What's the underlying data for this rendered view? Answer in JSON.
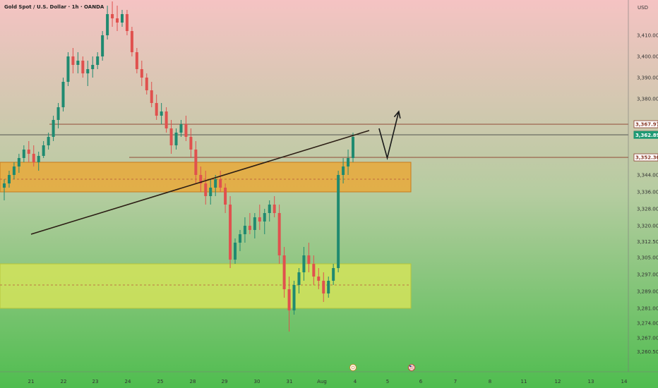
{
  "chart_data": {
    "type": "candlestick",
    "title": "Gold Spot / U.S. Dollar · 1h · OANDA",
    "currency": "USD",
    "colors": {
      "bg_top": "#f5c3c3",
      "bg_mid": "#b5cca0",
      "bg_bottom": "#4fbd4f",
      "up": "#1f8a70",
      "down": "#e0514e",
      "resistance_zone": "#e9a93a",
      "support_zone": "#d4e35a",
      "level_line": "#8a3b2a",
      "trendline": "#2b1d14"
    },
    "y_range": [
      3255,
      3425
    ],
    "y_ticks": [
      {
        "v": 3410,
        "label": "3,410.000"
      },
      {
        "v": 3400,
        "label": "3,400.000"
      },
      {
        "v": 3390,
        "label": "3,390.000"
      },
      {
        "v": 3380,
        "label": "3,380.000"
      },
      {
        "v": 3344,
        "label": "3,344.000"
      },
      {
        "v": 3336,
        "label": "3,336.000"
      },
      {
        "v": 3328,
        "label": "3,328.000"
      },
      {
        "v": 3320,
        "label": "3,320.000"
      },
      {
        "v": 3312.5,
        "label": "3,312.500"
      },
      {
        "v": 3305,
        "label": "3,305.000"
      },
      {
        "v": 3297,
        "label": "3,297.000"
      },
      {
        "v": 3289,
        "label": "3,289.000"
      },
      {
        "v": 3281,
        "label": "3,281.000"
      },
      {
        "v": 3274,
        "label": "3,274.000"
      },
      {
        "v": 3267,
        "label": "3,267.000"
      },
      {
        "v": 3260.5,
        "label": "3,260.500"
      }
    ],
    "price_labels": [
      {
        "v": 3367.976,
        "label": "3,367.976",
        "bg": "#ffffff",
        "fg": "#8a3b2a",
        "border": "#8a3b2a"
      },
      {
        "v": 3362.988,
        "label": "3,362.988",
        "bg": "#ffffff",
        "fg": "#222222",
        "border": "#333333"
      },
      {
        "v": 3362.895,
        "label": "3,362.895",
        "bg": "#1f9a74",
        "fg": "#ffffff",
        "border": "#1f9a74"
      },
      {
        "v": 3352.301,
        "label": "3,352.301",
        "bg": "#ffffff",
        "fg": "#8a3b2a",
        "border": "#8a3b2a"
      }
    ],
    "x_labels": [
      "21",
      "22",
      "23",
      "24",
      "25",
      "28",
      "29",
      "30",
      "31",
      "Aug",
      "4",
      "5",
      "6",
      "7",
      "8",
      "11",
      "12",
      "13",
      "14"
    ],
    "event_markers": [
      {
        "after_label": "4",
        "type": "dividend-icon"
      },
      {
        "after_label": "5",
        "type": "us-flag-icon"
      }
    ],
    "zones": [
      {
        "name": "resistance-zone",
        "from": 3336,
        "to": 3350,
        "mid": 3342
      },
      {
        "name": "support-zone",
        "from": 3281,
        "to": 3302,
        "mid": 3292
      }
    ],
    "levels": [
      3367.976,
      3362.988,
      3352.301
    ],
    "trendline": {
      "start": {
        "day": 21,
        "price": 3316
      },
      "end": {
        "day": 31.3,
        "price": 3365
      }
    },
    "projection": [
      {
        "day": 31.6,
        "price": 3366
      },
      {
        "day": 31.85,
        "price": 3352
      },
      {
        "day": 32.2,
        "price": 3374
      }
    ],
    "candles_ohlc": [
      [
        3338,
        3342,
        3332,
        3340
      ],
      [
        3340,
        3346,
        3338,
        3344
      ],
      [
        3344,
        3350,
        3342,
        3348
      ],
      [
        3348,
        3354,
        3345,
        3352
      ],
      [
        3352,
        3358,
        3350,
        3356
      ],
      [
        3356,
        3360,
        3350,
        3354
      ],
      [
        3354,
        3358,
        3348,
        3350
      ],
      [
        3350,
        3355,
        3346,
        3353
      ],
      [
        3353,
        3360,
        3352,
        3358
      ],
      [
        3358,
        3364,
        3356,
        3362
      ],
      [
        3362,
        3372,
        3360,
        3370
      ],
      [
        3370,
        3378,
        3366,
        3376
      ],
      [
        3376,
        3390,
        3374,
        3388
      ],
      [
        3388,
        3402,
        3386,
        3400
      ],
      [
        3400,
        3404,
        3392,
        3396
      ],
      [
        3396,
        3402,
        3392,
        3398
      ],
      [
        3398,
        3400,
        3390,
        3392
      ],
      [
        3392,
        3398,
        3386,
        3394
      ],
      [
        3394,
        3400,
        3390,
        3396
      ],
      [
        3396,
        3402,
        3394,
        3400
      ],
      [
        3400,
        3412,
        3398,
        3410
      ],
      [
        3410,
        3424,
        3408,
        3420
      ],
      [
        3420,
        3426,
        3414,
        3418
      ],
      [
        3418,
        3424,
        3412,
        3416
      ],
      [
        3416,
        3422,
        3414,
        3420
      ],
      [
        3420,
        3422,
        3410,
        3412
      ],
      [
        3412,
        3414,
        3400,
        3402
      ],
      [
        3402,
        3404,
        3392,
        3394
      ],
      [
        3394,
        3398,
        3386,
        3390
      ],
      [
        3390,
        3392,
        3382,
        3384
      ],
      [
        3384,
        3388,
        3376,
        3378
      ],
      [
        3378,
        3382,
        3370,
        3372
      ],
      [
        3372,
        3378,
        3368,
        3374
      ],
      [
        3374,
        3376,
        3364,
        3366
      ],
      [
        3366,
        3370,
        3354,
        3358
      ],
      [
        3358,
        3366,
        3356,
        3364
      ],
      [
        3364,
        3370,
        3362,
        3368
      ],
      [
        3368,
        3372,
        3360,
        3362
      ],
      [
        3362,
        3366,
        3352,
        3356
      ],
      [
        3356,
        3360,
        3340,
        3344
      ],
      [
        3344,
        3348,
        3336,
        3340
      ],
      [
        3340,
        3346,
        3330,
        3334
      ],
      [
        3334,
        3342,
        3330,
        3338
      ],
      [
        3338,
        3344,
        3334,
        3342
      ],
      [
        3342,
        3346,
        3336,
        3338
      ],
      [
        3338,
        3340,
        3326,
        3330
      ],
      [
        3330,
        3334,
        3300,
        3304
      ],
      [
        3304,
        3314,
        3302,
        3312
      ],
      [
        3312,
        3318,
        3308,
        3316
      ],
      [
        3316,
        3324,
        3312,
        3320
      ],
      [
        3320,
        3326,
        3316,
        3318
      ],
      [
        3318,
        3326,
        3314,
        3324
      ],
      [
        3324,
        3330,
        3318,
        3322
      ],
      [
        3322,
        3328,
        3316,
        3326
      ],
      [
        3326,
        3332,
        3322,
        3330
      ],
      [
        3330,
        3334,
        3324,
        3326
      ],
      [
        3326,
        3330,
        3302,
        3306
      ],
      [
        3306,
        3310,
        3286,
        3290
      ],
      [
        3290,
        3296,
        3270,
        3280
      ],
      [
        3280,
        3294,
        3278,
        3292
      ],
      [
        3292,
        3300,
        3288,
        3298
      ],
      [
        3298,
        3310,
        3294,
        3306
      ],
      [
        3306,
        3312,
        3298,
        3302
      ],
      [
        3302,
        3306,
        3292,
        3296
      ],
      [
        3296,
        3300,
        3290,
        3294
      ],
      [
        3294,
        3298,
        3284,
        3288
      ],
      [
        3288,
        3296,
        3286,
        3294
      ],
      [
        3294,
        3302,
        3292,
        3300
      ],
      [
        3300,
        3346,
        3298,
        3344
      ],
      [
        3344,
        3352,
        3340,
        3348
      ],
      [
        3348,
        3356,
        3344,
        3352
      ],
      [
        3352,
        3364,
        3350,
        3362
      ]
    ]
  }
}
